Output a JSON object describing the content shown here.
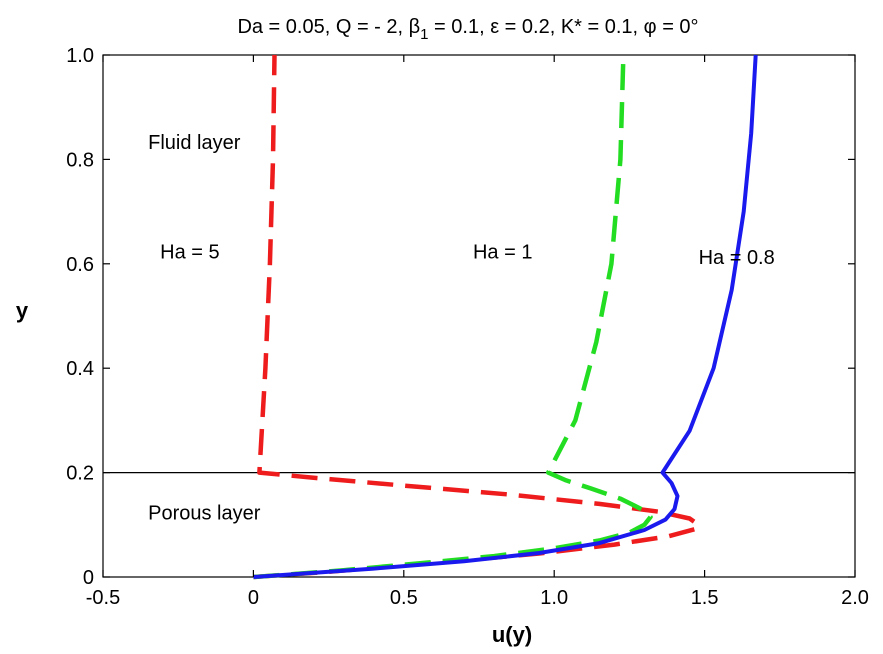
{
  "chart_data": {
    "type": "line",
    "title_parts": {
      "p1": "Da = 0.05, Q = - 2, β",
      "sub": "1",
      "p2": " = 0.1, ε = 0.2, K* = 0.1, φ = 0°"
    },
    "xlabel": "u(y)",
    "ylabel": "y",
    "xlim": [
      -0.5,
      2.0
    ],
    "ylim": [
      0,
      1.0
    ],
    "x_ticks": [
      "-0.5",
      "0",
      "0.5",
      "1.0",
      "1.5",
      "2.0"
    ],
    "y_ticks": [
      "0",
      "0.2",
      "0.4",
      "0.6",
      "0.8",
      "1.0"
    ],
    "interface_y": 0.2,
    "annotations": [
      {
        "text": "Fluid layer",
        "x": -0.35,
        "y": 0.82
      },
      {
        "text": "Porous layer",
        "x": -0.35,
        "y": 0.11
      },
      {
        "text": "Ha = 5",
        "x": -0.31,
        "y": 0.61
      },
      {
        "text": "Ha = 1",
        "x": 0.73,
        "y": 0.61
      },
      {
        "text": "Ha = 0.8",
        "x": 1.48,
        "y": 0.6
      }
    ],
    "series": [
      {
        "label_ref": "Ha = 5",
        "color": "#ee1c1c",
        "dash": "dashed",
        "points": [
          [
            0,
            0
          ],
          [
            0.1,
            0.004
          ],
          [
            0.25,
            0.01
          ],
          [
            0.45,
            0.02
          ],
          [
            0.7,
            0.032
          ],
          [
            0.95,
            0.045
          ],
          [
            1.2,
            0.062
          ],
          [
            1.38,
            0.078
          ],
          [
            1.47,
            0.092
          ],
          [
            1.48,
            0.1
          ],
          [
            1.45,
            0.112
          ],
          [
            1.35,
            0.125
          ],
          [
            1.15,
            0.14
          ],
          [
            0.85,
            0.158
          ],
          [
            0.5,
            0.175
          ],
          [
            0.2,
            0.19
          ],
          [
            0.02,
            0.2
          ],
          [
            0.04,
            0.4
          ],
          [
            0.055,
            0.6
          ],
          [
            0.065,
            0.8
          ],
          [
            0.07,
            1.0
          ]
        ]
      },
      {
        "label_ref": "Ha = 1",
        "color": "#22dd22",
        "dash": "dashed",
        "points": [
          [
            0,
            0
          ],
          [
            0.12,
            0.005
          ],
          [
            0.3,
            0.013
          ],
          [
            0.55,
            0.026
          ],
          [
            0.8,
            0.04
          ],
          [
            1.0,
            0.055
          ],
          [
            1.15,
            0.07
          ],
          [
            1.25,
            0.085
          ],
          [
            1.3,
            0.1
          ],
          [
            1.32,
            0.115
          ],
          [
            1.29,
            0.13
          ],
          [
            1.22,
            0.15
          ],
          [
            1.12,
            0.17
          ],
          [
            1.04,
            0.185
          ],
          [
            0.98,
            0.2
          ],
          [
            1.07,
            0.3
          ],
          [
            1.14,
            0.45
          ],
          [
            1.19,
            0.6
          ],
          [
            1.22,
            0.8
          ],
          [
            1.23,
            1.0
          ]
        ]
      },
      {
        "label_ref": "Ha = 0.8",
        "color": "#1a1aee",
        "dash": "solid",
        "points": [
          [
            0,
            0
          ],
          [
            0.15,
            0.006
          ],
          [
            0.4,
            0.016
          ],
          [
            0.7,
            0.03
          ],
          [
            0.95,
            0.046
          ],
          [
            1.15,
            0.065
          ],
          [
            1.3,
            0.09
          ],
          [
            1.37,
            0.11
          ],
          [
            1.4,
            0.13
          ],
          [
            1.41,
            0.155
          ],
          [
            1.39,
            0.18
          ],
          [
            1.36,
            0.2
          ],
          [
            1.45,
            0.28
          ],
          [
            1.53,
            0.4
          ],
          [
            1.59,
            0.55
          ],
          [
            1.63,
            0.7
          ],
          [
            1.655,
            0.85
          ],
          [
            1.67,
            1.0
          ]
        ]
      }
    ]
  }
}
